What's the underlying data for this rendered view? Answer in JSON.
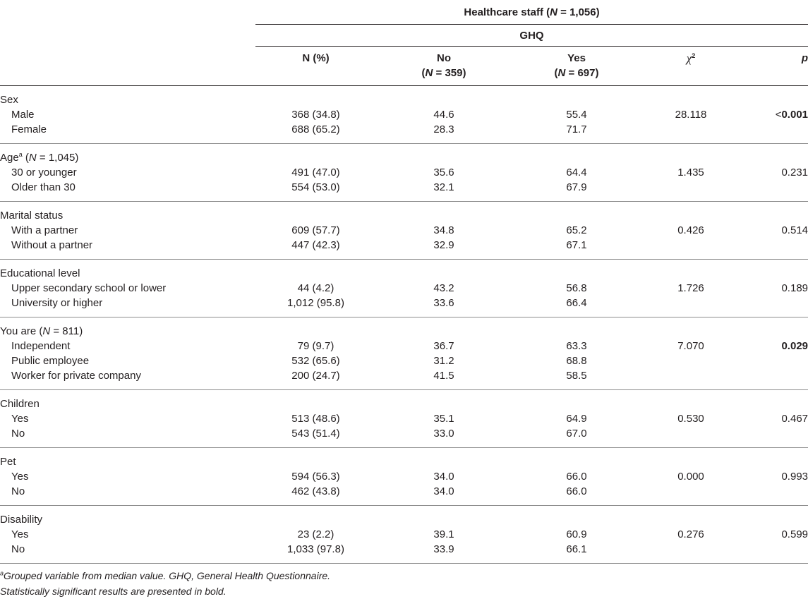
{
  "header": {
    "group_label": "Healthcare staff (",
    "group_n_italic": "N",
    "group_n_value": " = 1,056)",
    "ghq_label": "GHQ",
    "col_n_pct": "N (%)",
    "col_no": "No",
    "col_no_n_italic": "N",
    "col_no_n_value": " = 359)",
    "col_yes": "Yes",
    "col_yes_n_italic": "N",
    "col_yes_n_value": " = 697)",
    "col_chi": "χ",
    "col_chi_sup": "2",
    "col_p": "p",
    "paren_open": "("
  },
  "groups": [
    {
      "title": "Sex",
      "rows": [
        {
          "label": "Male",
          "n_pct": "368 (34.8)",
          "no": "44.6",
          "yes": "55.4",
          "chi": "28.118",
          "p_prefix": "<",
          "p_bold": "0.001"
        },
        {
          "label": "Female",
          "n_pct": "688 (65.2)",
          "no": "28.3",
          "yes": "71.7"
        }
      ]
    },
    {
      "title": "Age",
      "title_sup": "a",
      "title_n_open": " (",
      "title_n_italic": "N",
      "title_n_value": " = 1,045)",
      "rows": [
        {
          "label": "30 or younger",
          "n_pct": "491 (47.0)",
          "no": "35.6",
          "yes": "64.4",
          "chi": "1.435",
          "p": "0.231"
        },
        {
          "label": "Older than 30",
          "n_pct": "554 (53.0)",
          "no": "32.1",
          "yes": "67.9"
        }
      ]
    },
    {
      "title": "Marital status",
      "rows": [
        {
          "label": "With a partner",
          "n_pct": "609 (57.7)",
          "no": "34.8",
          "yes": "65.2",
          "chi": "0.426",
          "p": "0.514"
        },
        {
          "label": "Without a partner",
          "n_pct": "447 (42.3)",
          "no": "32.9",
          "yes": "67.1"
        }
      ]
    },
    {
      "title": "Educational level",
      "rows": [
        {
          "label": "Upper secondary school or lower",
          "n_pct": "44 (4.2)",
          "no": "43.2",
          "yes": "56.8",
          "chi": "1.726",
          "p": "0.189"
        },
        {
          "label": "University or higher",
          "n_pct": "1,012 (95.8)",
          "no": "33.6",
          "yes": "66.4"
        }
      ]
    },
    {
      "title": "You are",
      "title_n_open": " (",
      "title_n_italic": "N",
      "title_n_value": " = 811)",
      "rows": [
        {
          "label": "Independent",
          "n_pct": "79 (9.7)",
          "no": "36.7",
          "yes": "63.3",
          "chi": "7.070",
          "p_bold": "0.029"
        },
        {
          "label": "Public employee",
          "n_pct": "532 (65.6)",
          "no": "31.2",
          "yes": "68.8"
        },
        {
          "label": "Worker for private company",
          "n_pct": "200 (24.7)",
          "no": "41.5",
          "yes": "58.5"
        }
      ]
    },
    {
      "title": "Children",
      "rows": [
        {
          "label": "Yes",
          "n_pct": "513 (48.6)",
          "no": "35.1",
          "yes": "64.9",
          "chi": "0.530",
          "p": "0.467"
        },
        {
          "label": "No",
          "n_pct": "543 (51.4)",
          "no": "33.0",
          "yes": "67.0"
        }
      ]
    },
    {
      "title": "Pet",
      "rows": [
        {
          "label": "Yes",
          "n_pct": "594 (56.3)",
          "no": "34.0",
          "yes": "66.0",
          "chi": "0.000",
          "p": "0.993"
        },
        {
          "label": "No",
          "n_pct": "462 (43.8)",
          "no": "34.0",
          "yes": "66.0"
        }
      ]
    },
    {
      "title": "Disability",
      "rows": [
        {
          "label": "Yes",
          "n_pct": "23 (2.2)",
          "no": "39.1",
          "yes": "60.9",
          "chi": "0.276",
          "p": "0.599"
        },
        {
          "label": "No",
          "n_pct": "1,033 (97.8)",
          "no": "33.9",
          "yes": "66.1"
        }
      ]
    }
  ],
  "footnotes": {
    "note_a_sup": "a",
    "note_a": "Grouped variable from median value. GHQ, General Health Questionnaire.",
    "note_bold": "Statistically significant results are presented in bold."
  }
}
